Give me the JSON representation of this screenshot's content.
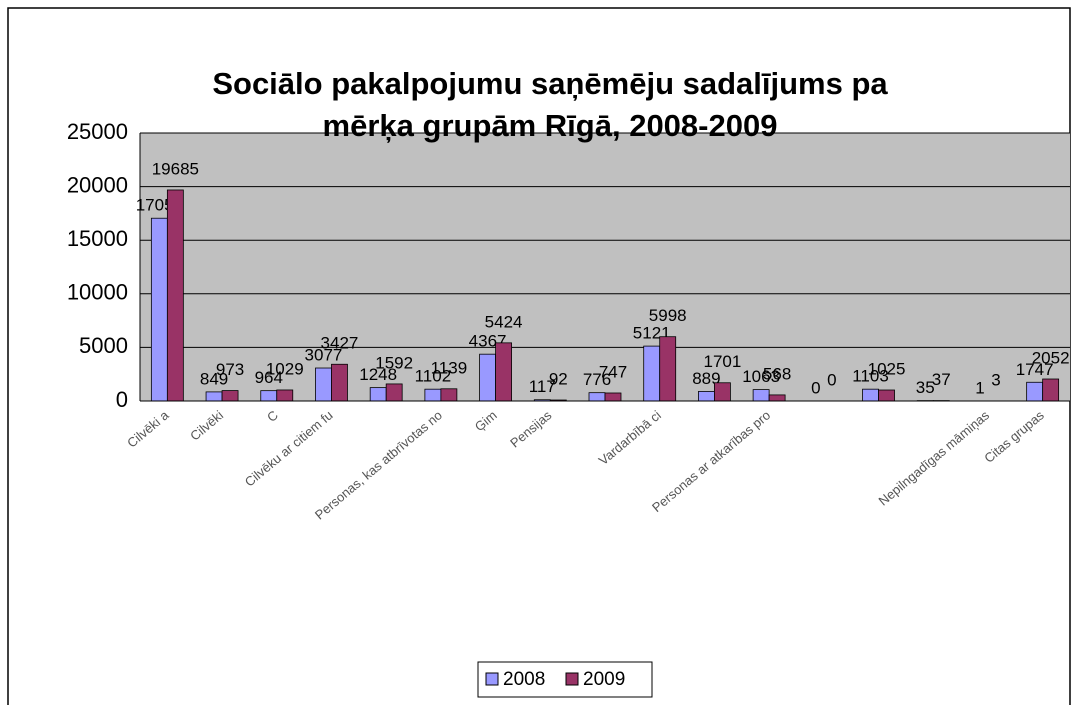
{
  "chart_data": {
    "type": "bar",
    "title": [
      "Sociālo pakalpojumu saņēmēju sadalījums pa",
      "mērķa grupām Rīgā, 2008-2009"
    ],
    "categories": [
      "Cilvēki a",
      "Cilvēki",
      "C",
      "Cilvēku ar citiem fu",
      null,
      "Personas, kas atbrīvotas no",
      "Ģim",
      "Pensijas",
      null,
      "Vardarbībā ci",
      null,
      "Personas ar atkarības pro",
      null,
      null,
      null,
      "Nepilngadīgas māmiņas",
      "Citas grupas"
    ],
    "series": [
      {
        "name": "2008",
        "color": "#9999ff",
        "values": [
          17050,
          849,
          964,
          3077,
          1248,
          1102,
          4367,
          117,
          776,
          5121,
          889,
          1063,
          0,
          1103,
          35,
          1,
          1747
        ]
      },
      {
        "name": "2009",
        "color": "#993366",
        "values": [
          19685,
          973,
          1029,
          3427,
          1592,
          1139,
          5424,
          92,
          747,
          5998,
          1701,
          568,
          0,
          1025,
          37,
          3,
          2052
        ]
      }
    ],
    "ylim": [
      0,
      25000
    ],
    "yticks": [
      0,
      5000,
      10000,
      15000,
      20000,
      25000
    ],
    "grid": true,
    "legend": "bottom"
  }
}
